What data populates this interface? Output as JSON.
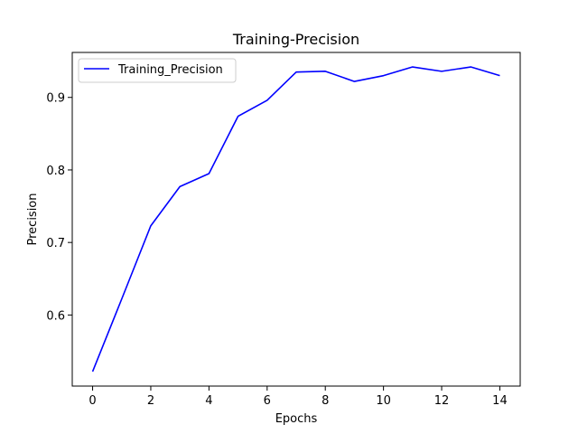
{
  "chart_data": {
    "type": "line",
    "title": "Training-Precision",
    "xlabel": "Epochs",
    "ylabel": "Precision",
    "xlim": [
      -0.7,
      14.7
    ],
    "ylim": [
      0.502,
      0.962
    ],
    "xticks": [
      0,
      2,
      4,
      6,
      8,
      10,
      12,
      14
    ],
    "yticks": [
      0.6,
      0.7,
      0.8,
      0.9
    ],
    "grid": false,
    "legend_position": "top-left",
    "series": [
      {
        "name": "Training_Precision",
        "color": "#0000ff",
        "x": [
          0,
          1,
          2,
          3,
          4,
          5,
          6,
          7,
          8,
          9,
          10,
          11,
          12,
          13,
          14
        ],
        "values": [
          0.522,
          0.622,
          0.723,
          0.777,
          0.795,
          0.874,
          0.896,
          0.935,
          0.936,
          0.922,
          0.93,
          0.942,
          0.936,
          0.942,
          0.93
        ]
      }
    ]
  }
}
